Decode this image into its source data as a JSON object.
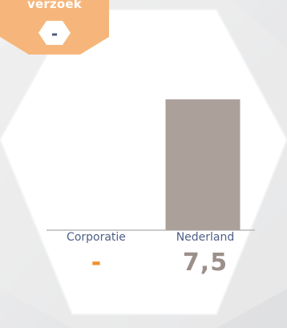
{
  "header_tag": {
    "label": "verzoek",
    "value": "-"
  },
  "chart_data": {
    "type": "bar",
    "categories": [
      "Corporatie",
      "Nederland"
    ],
    "values": [
      null,
      7.5
    ],
    "value_labels": [
      "-",
      "7,5"
    ],
    "ylim": [
      0,
      9.1
    ],
    "colors": {
      "bar": "#aba09a",
      "label_a": "#f0902a",
      "label_b": "#9c8f89",
      "category": "#4f5f85"
    }
  }
}
